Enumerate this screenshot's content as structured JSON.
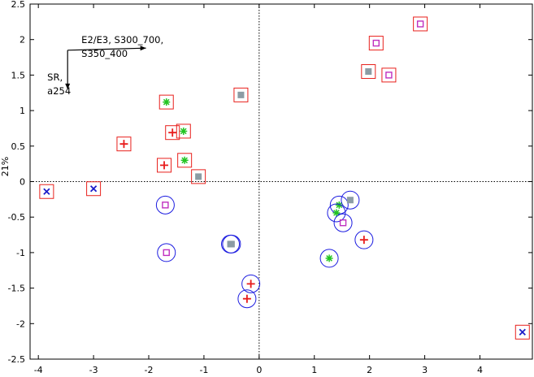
{
  "chart_data": {
    "type": "scatter",
    "title": "",
    "xlabel": "",
    "ylabel": "21%",
    "xlim": [
      -4.15,
      4.95
    ],
    "ylim": [
      -2.5,
      2.5
    ],
    "xticks": [
      -4,
      -3,
      -2,
      -1,
      0,
      1,
      2,
      3,
      4
    ],
    "yticks": [
      -2.5,
      -2,
      -1.5,
      -1,
      -0.5,
      0,
      0.5,
      1,
      1.5,
      2,
      2.5
    ],
    "ytick_labels": [
      "-2.5",
      "-2",
      "-1.5",
      "-1",
      "-0.5",
      "0",
      "0.5",
      "1",
      "1.5",
      "2",
      "2.5"
    ],
    "grid": false,
    "zero_lines": "dotted",
    "enclosure_colors": {
      "square": "#e8201c",
      "circle": "#1c1ce0"
    },
    "series": [
      {
        "marker": "plus",
        "color": "#e81c1c",
        "points": [
          {
            "x": -2.45,
            "y": 0.53,
            "enc": "square"
          },
          {
            "x": -1.72,
            "y": 0.23,
            "enc": "square"
          },
          {
            "x": -1.57,
            "y": 0.69,
            "enc": "square"
          },
          {
            "x": -0.15,
            "y": -1.44,
            "enc": "circle"
          },
          {
            "x": -0.22,
            "y": -1.65,
            "enc": "circle"
          },
          {
            "x": 1.9,
            "y": -0.82,
            "enc": "circle"
          }
        ]
      },
      {
        "marker": "x",
        "color": "#1c1cc8",
        "points": [
          {
            "x": -3.85,
            "y": -0.14,
            "enc": "square"
          },
          {
            "x": -3.0,
            "y": -0.1,
            "enc": "square"
          },
          {
            "x": 4.77,
            "y": -2.12,
            "enc": "square"
          }
        ]
      },
      {
        "marker": "asterisk",
        "color": "#22c422",
        "points": [
          {
            "x": -1.68,
            "y": 1.12,
            "enc": "square"
          },
          {
            "x": -1.37,
            "y": 0.71,
            "enc": "square"
          },
          {
            "x": -1.35,
            "y": 0.3,
            "enc": "square"
          },
          {
            "x": 1.27,
            "y": -1.08,
            "enc": "circle"
          },
          {
            "x": 1.45,
            "y": -0.33,
            "enc": "circle"
          },
          {
            "x": 1.4,
            "y": -0.44,
            "enc": "circle"
          }
        ]
      },
      {
        "marker": "open-square",
        "color": "#c030c0",
        "points": [
          {
            "x": 2.92,
            "y": 2.22,
            "enc": "square"
          },
          {
            "x": 2.12,
            "y": 1.95,
            "enc": "square"
          },
          {
            "x": 2.35,
            "y": 1.5,
            "enc": "square"
          },
          {
            "x": -1.7,
            "y": -0.33,
            "enc": "circle"
          },
          {
            "x": -1.68,
            "y": -1.0,
            "enc": "circle"
          },
          {
            "x": 1.52,
            "y": -0.58,
            "enc": "circle"
          }
        ]
      },
      {
        "marker": "filled-square",
        "color": "#8c9ca4",
        "points": [
          {
            "x": 1.98,
            "y": 1.55,
            "enc": "square"
          },
          {
            "x": -0.33,
            "y": 1.22,
            "enc": "square"
          },
          {
            "x": -1.1,
            "y": 0.07,
            "enc": "square"
          },
          {
            "x": -0.5,
            "y": -0.88,
            "enc": "circle"
          },
          {
            "x": -0.52,
            "y": -0.88,
            "enc": "circle"
          },
          {
            "x": 1.65,
            "y": -0.26,
            "enc": "circle"
          }
        ]
      }
    ],
    "arrows": [
      {
        "label_lines": [
          "E2/E3, S300_700,",
          "S350_400"
        ],
        "from": [
          -3.47,
          1.85
        ],
        "to": [
          -2.05,
          1.88
        ]
      },
      {
        "label_lines": [
          "SR,",
          "a254"
        ],
        "from": [
          -3.47,
          1.85
        ],
        "to": [
          -3.47,
          1.3
        ]
      }
    ]
  }
}
